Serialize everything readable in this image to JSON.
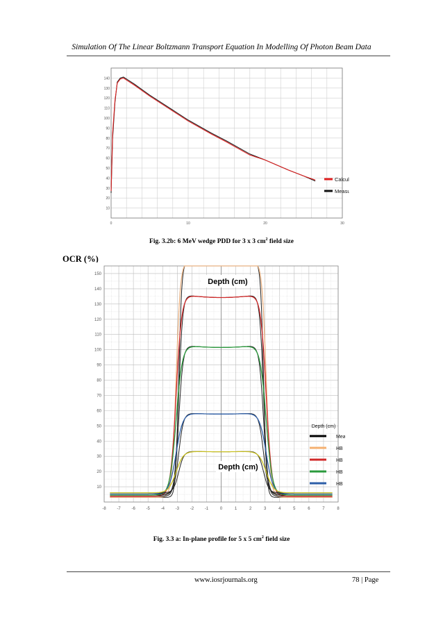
{
  "header": {
    "running_title": "Simulation Of The Linear Boltzmann Transport Equation In Modelling Of Photon Beam Data"
  },
  "figure_b": {
    "caption_prefix": "Fig. 3.2b: 6 MeV wedge PDD for 3 x 3 cm",
    "caption_sup": "2",
    "caption_suffix": " field size",
    "chart_data": {
      "type": "line",
      "xlim": [
        0,
        30
      ],
      "ylim": [
        0,
        150
      ],
      "grid": true,
      "legend_placement": "bottom-right",
      "x_ticks": [
        "0",
        "10",
        "20",
        "30"
      ],
      "y_ticks": [
        "10",
        "20",
        "30",
        "40",
        "50",
        "60",
        "70",
        "80",
        "90",
        "100",
        "110",
        "120",
        "130",
        "140"
      ],
      "series": [
        {
          "name": "Calculated",
          "color": "#e02020",
          "x": [
            0,
            0.2,
            0.5,
            0.8,
            1.2,
            1.6,
            2,
            3,
            5,
            8,
            10,
            13,
            15,
            18,
            20,
            23,
            25,
            26.5
          ],
          "y": [
            27,
            85,
            118,
            135,
            139,
            140,
            138,
            133,
            122,
            107,
            97,
            84,
            76,
            63,
            58,
            48,
            42,
            38
          ]
        },
        {
          "name": "Measured",
          "color": "#222222",
          "x": [
            0,
            0.2,
            0.5,
            0.8,
            1.2,
            1.6,
            2,
            3,
            5,
            8,
            10,
            13,
            15,
            18,
            20,
            23,
            25,
            26.5
          ],
          "y": [
            25,
            80,
            116,
            136,
            140,
            141,
            139,
            134,
            123,
            108,
            98,
            85,
            77,
            64,
            58,
            48,
            42,
            37
          ]
        }
      ]
    }
  },
  "figure_a": {
    "caption_prefix": "Fig. 3.3 a: In-plane profile for 5 x 5 cm",
    "caption_sup": "2",
    "caption_suffix": " field size",
    "ylabel": "OCR (%)",
    "chart_data": {
      "type": "line",
      "xlim": [
        -8,
        8
      ],
      "ylim": [
        0,
        155
      ],
      "grid": true,
      "legend_placement": "bottom-right",
      "x_ticks": [
        "-8",
        "-7",
        "-6",
        "-5",
        "-4",
        "-3",
        "-2",
        "-1",
        "0",
        "1",
        "2",
        "3",
        "4",
        "5",
        "6",
        "7",
        "8"
      ],
      "y_ticks": [
        "10",
        "20",
        "30",
        "40",
        "50",
        "60",
        "70",
        "80",
        "90",
        "100",
        "110",
        "120",
        "130",
        "140",
        "150"
      ],
      "annotations": [
        "Depth (cm)",
        "Depth (cm)"
      ],
      "legend_title": "Depth (cm)",
      "legend": [
        {
          "label": "Meas.",
          "color": "#000000"
        },
        {
          "label": "HB",
          "color": "#f5b070"
        },
        {
          "label": "HB",
          "color": "#d02828"
        },
        {
          "label": "HB",
          "color": "#2a9a3c"
        },
        {
          "label": "HB",
          "color": "#2e5fa8"
        }
      ],
      "profiles": [
        {
          "peak": 155,
          "pen": 0.35,
          "tail": 2,
          "colors": [
            "#222222",
            "#e8b080"
          ]
        },
        {
          "peak": 133,
          "pen": 0.45,
          "tail": 2.5,
          "colors": [
            "#222222",
            "#d02828"
          ]
        },
        {
          "peak": 100,
          "pen": 0.5,
          "tail": 3,
          "colors": [
            "#222222",
            "#2a9a3c"
          ]
        },
        {
          "peak": 56,
          "pen": 0.55,
          "tail": 3.5,
          "colors": [
            "#222222",
            "#2e5fa8"
          ]
        },
        {
          "peak": 31,
          "pen": 0.6,
          "tail": 4,
          "colors": [
            "#222222",
            "#c8c020"
          ]
        }
      ]
    }
  },
  "footer": {
    "website": "www.iosrjournals.org",
    "page": "78 | Page"
  }
}
